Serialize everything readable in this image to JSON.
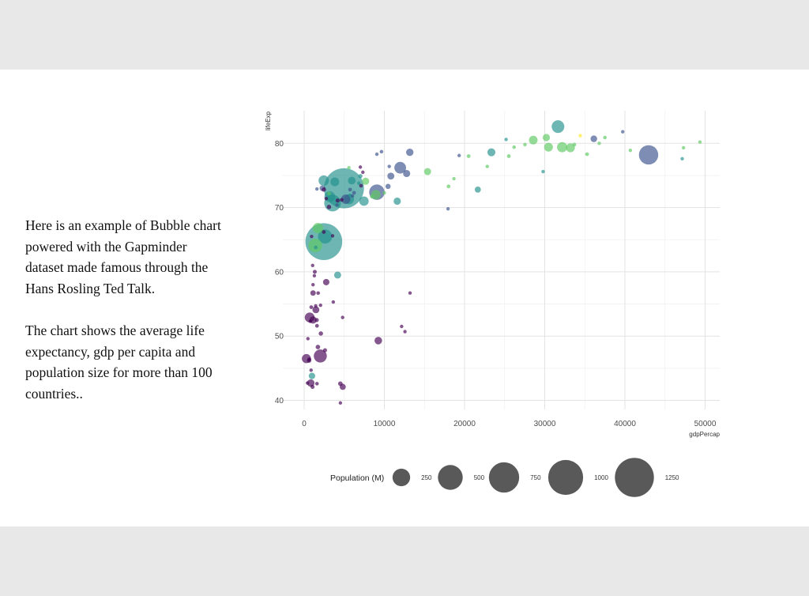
{
  "description": {
    "paragraph1": "Here is an example of Bubble chart powered with the Gapminder dataset made famous through the Hans Rosling Ted Talk.",
    "paragraph2": "The chart shows the average life expectancy, gdp per capita and population size for more than 100 countries.."
  },
  "chart_data": {
    "type": "scatter",
    "xlabel": "gdpPercap",
    "ylabel": "lifeExp",
    "xlim": [
      0,
      50000
    ],
    "ylim": [
      40,
      80
    ],
    "x_ticks": [
      "0",
      "10000",
      "20000",
      "30000",
      "40000",
      "50000"
    ],
    "y_ticks": [
      "40",
      "50",
      "60",
      "70",
      "80"
    ],
    "grid": true,
    "size_legend": {
      "title": "Population (M)",
      "values": [
        250,
        500,
        750,
        1000,
        1250
      ],
      "labels": [
        "250",
        "500",
        "750",
        "1000",
        "1250"
      ],
      "placement": "bottom"
    },
    "color_scale": [
      "#440154",
      "#3b528b",
      "#21908c",
      "#5ec962",
      "#fde725"
    ],
    "points": [
      {
        "x": 4959,
        "y": 73.0,
        "pop": 1319,
        "c": 2
      },
      {
        "x": 2452,
        "y": 64.7,
        "pop": 1110,
        "c": 2
      },
      {
        "x": 42952,
        "y": 78.2,
        "pop": 301,
        "c": 1
      },
      {
        "x": 3541,
        "y": 70.7,
        "pop": 224,
        "c": 2
      },
      {
        "x": 9066,
        "y": 72.4,
        "pop": 190,
        "c": 1
      },
      {
        "x": 2606,
        "y": 65.5,
        "pop": 160,
        "c": 2
      },
      {
        "x": 1391,
        "y": 64.1,
        "pop": 150,
        "c": 3
      },
      {
        "x": 2014,
        "y": 46.9,
        "pop": 135,
        "c": 0
      },
      {
        "x": 31656,
        "y": 82.6,
        "pop": 127,
        "c": 2
      },
      {
        "x": 11977,
        "y": 76.2,
        "pop": 108,
        "c": 1
      },
      {
        "x": 3190,
        "y": 71.7,
        "pop": 91,
        "c": 2
      },
      {
        "x": 2442,
        "y": 74.2,
        "pop": 85,
        "c": 2
      },
      {
        "x": 32170,
        "y": 79.4,
        "pop": 82,
        "c": 3
      },
      {
        "x": 690,
        "y": 52.9,
        "pop": 76,
        "c": 0
      },
      {
        "x": 5581,
        "y": 71.3,
        "pop": 80,
        "c": 2
      },
      {
        "x": 7458,
        "y": 71.0,
        "pop": 69,
        "c": 2
      },
      {
        "x": 5186,
        "y": 71.3,
        "pop": 69,
        "c": 1
      },
      {
        "x": 1713,
        "y": 66.8,
        "pop": 85,
        "c": 3
      },
      {
        "x": 8948,
        "y": 72.0,
        "pop": 71,
        "c": 3
      },
      {
        "x": 9246,
        "y": 49.3,
        "pop": 44,
        "c": 0
      },
      {
        "x": 277,
        "y": 46.5,
        "pop": 64,
        "c": 0
      },
      {
        "x": 11606,
        "y": 71.0,
        "pop": 40,
        "c": 2
      },
      {
        "x": 30470,
        "y": 79.4,
        "pop": 60,
        "c": 3
      },
      {
        "x": 28570,
        "y": 80.5,
        "pop": 58,
        "c": 3
      },
      {
        "x": 33203,
        "y": 79.3,
        "pop": 61,
        "c": 3
      },
      {
        "x": 23348,
        "y": 78.6,
        "pop": 49,
        "c": 2
      },
      {
        "x": 30200,
        "y": 80.9,
        "pop": 40,
        "c": 3
      },
      {
        "x": 36126,
        "y": 80.7,
        "pop": 33,
        "c": 1
      },
      {
        "x": 12779,
        "y": 75.3,
        "pop": 39,
        "c": 1
      },
      {
        "x": 15390,
        "y": 75.6,
        "pop": 38,
        "c": 3
      },
      {
        "x": 2280,
        "y": 73.0,
        "pop": 24,
        "c": 1
      },
      {
        "x": 21655,
        "y": 72.8,
        "pop": 28,
        "c": 2
      },
      {
        "x": 10461,
        "y": 73.3,
        "pop": 20,
        "c": 1
      },
      {
        "x": 824,
        "y": 42.7,
        "pop": 42,
        "c": 0
      },
      {
        "x": 1463,
        "y": 54.1,
        "pop": 37,
        "c": 0
      },
      {
        "x": 1107,
        "y": 52.5,
        "pop": 40,
        "c": 0
      },
      {
        "x": 4173,
        "y": 59.5,
        "pop": 38,
        "c": 2
      },
      {
        "x": 4811,
        "y": 42.1,
        "pop": 28,
        "c": 0
      },
      {
        "x": 2749,
        "y": 58.4,
        "pop": 31,
        "c": 0
      },
      {
        "x": 1107,
        "y": 56.7,
        "pop": 22,
        "c": 0
      },
      {
        "x": 5937,
        "y": 74.2,
        "pop": 45,
        "c": 2
      },
      {
        "x": 7670,
        "y": 74.1,
        "pop": 39,
        "c": 3
      },
      {
        "x": 974,
        "y": 43.8,
        "pop": 32,
        "c": 2
      },
      {
        "x": 3820,
        "y": 74.0,
        "pop": 60,
        "c": 2
      },
      {
        "x": 13172,
        "y": 78.6,
        "pop": 42,
        "c": 1
      },
      {
        "x": 10808,
        "y": 74.9,
        "pop": 37,
        "c": 1
      },
      {
        "x": 34435,
        "y": 81.2,
        "pop": 7,
        "c": 4
      },
      {
        "x": 40676,
        "y": 78.9,
        "pop": 5,
        "c": 3
      },
      {
        "x": 47307,
        "y": 79.3,
        "pop": 6,
        "c": 3
      },
      {
        "x": 49357,
        "y": 80.2,
        "pop": 4,
        "c": 3
      },
      {
        "x": 36798,
        "y": 80.0,
        "pop": 8,
        "c": 3
      },
      {
        "x": 35278,
        "y": 78.3,
        "pop": 10,
        "c": 3
      },
      {
        "x": 33692,
        "y": 79.8,
        "pop": 10,
        "c": 3
      },
      {
        "x": 37506,
        "y": 80.9,
        "pop": 9,
        "c": 3
      },
      {
        "x": 39725,
        "y": 81.8,
        "pop": 7,
        "c": 1
      },
      {
        "x": 25185,
        "y": 80.6,
        "pop": 7,
        "c": 2
      },
      {
        "x": 47143,
        "y": 77.6,
        "pop": 5,
        "c": 2
      },
      {
        "x": 19328,
        "y": 78.1,
        "pop": 5,
        "c": 1
      },
      {
        "x": 20510,
        "y": 78.0,
        "pop": 10,
        "c": 3
      },
      {
        "x": 22833,
        "y": 76.4,
        "pop": 7,
        "c": 3
      },
      {
        "x": 18008,
        "y": 73.3,
        "pop": 10,
        "c": 3
      },
      {
        "x": 18678,
        "y": 74.5,
        "pop": 7,
        "c": 3
      },
      {
        "x": 26180,
        "y": 79.4,
        "pop": 9,
        "c": 3
      },
      {
        "x": 27538,
        "y": 79.8,
        "pop": 9,
        "c": 3
      },
      {
        "x": 25523,
        "y": 78.0,
        "pop": 10,
        "c": 3
      },
      {
        "x": 29796,
        "y": 75.6,
        "pop": 2,
        "c": 2
      },
      {
        "x": 17942,
        "y": 69.8,
        "pop": 4,
        "c": 1
      },
      {
        "x": 12570,
        "y": 50.7,
        "pop": 5,
        "c": 0
      },
      {
        "x": 12154,
        "y": 51.5,
        "pop": 3,
        "c": 0
      },
      {
        "x": 13206,
        "y": 56.7,
        "pop": 4,
        "c": 0
      },
      {
        "x": 9645,
        "y": 78.7,
        "pop": 9,
        "c": 1
      },
      {
        "x": 9065,
        "y": 78.3,
        "pop": 8,
        "c": 1
      },
      {
        "x": 10611,
        "y": 76.4,
        "pop": 6,
        "c": 1
      },
      {
        "x": 4797,
        "y": 52.9,
        "pop": 3,
        "c": 0
      },
      {
        "x": 4513,
        "y": 42.6,
        "pop": 15,
        "c": 0
      },
      {
        "x": 4519,
        "y": 39.6,
        "pop": 2,
        "c": 0
      },
      {
        "x": 3632,
        "y": 55.3,
        "pop": 8,
        "c": 0
      },
      {
        "x": 1598,
        "y": 42.6,
        "pop": 9,
        "c": 0
      },
      {
        "x": 1044,
        "y": 42.1,
        "pop": 12,
        "c": 0
      },
      {
        "x": 415,
        "y": 42.7,
        "pop": 8,
        "c": 0
      },
      {
        "x": 641,
        "y": 46.4,
        "pop": 10,
        "c": 0
      },
      {
        "x": 1712,
        "y": 48.3,
        "pop": 15,
        "c": 0
      },
      {
        "x": 863,
        "y": 44.7,
        "pop": 5,
        "c": 0
      },
      {
        "x": 619,
        "y": 46.2,
        "pop": 14,
        "c": 0
      },
      {
        "x": 1569,
        "y": 52.5,
        "pop": 12,
        "c": 0
      },
      {
        "x": 1598,
        "y": 51.6,
        "pop": 10,
        "c": 0
      },
      {
        "x": 2042,
        "y": 54.8,
        "pop": 4,
        "c": 0
      },
      {
        "x": 1327,
        "y": 60.0,
        "pop": 11,
        "c": 0
      },
      {
        "x": 1746,
        "y": 56.7,
        "pop": 9,
        "c": 0
      },
      {
        "x": 883,
        "y": 54.5,
        "pop": 10,
        "c": 0
      },
      {
        "x": 1107,
        "y": 58.0,
        "pop": 8,
        "c": 0
      },
      {
        "x": 2082,
        "y": 50.4,
        "pop": 14,
        "c": 0
      },
      {
        "x": 470,
        "y": 49.6,
        "pop": 8,
        "c": 0
      },
      {
        "x": 1271,
        "y": 59.4,
        "pop": 7,
        "c": 0
      },
      {
        "x": 926,
        "y": 65.5,
        "pop": 5,
        "c": 0
      },
      {
        "x": 2602,
        "y": 47.8,
        "pop": 12,
        "c": 0
      },
      {
        "x": 759,
        "y": 52.3,
        "pop": 7,
        "c": 0
      },
      {
        "x": 1056,
        "y": 61.0,
        "pop": 5,
        "c": 0
      },
      {
        "x": 3548,
        "y": 65.6,
        "pop": 8,
        "c": 0
      },
      {
        "x": 1441,
        "y": 54.7,
        "pop": 6,
        "c": 0
      },
      {
        "x": 2749,
        "y": 71.4,
        "pop": 7,
        "c": 0
      },
      {
        "x": 4090,
        "y": 70.4,
        "pop": 8,
        "c": 1
      },
      {
        "x": 6223,
        "y": 72.3,
        "pop": 10,
        "c": 1
      },
      {
        "x": 7008,
        "y": 74.9,
        "pop": 13,
        "c": 2
      },
      {
        "x": 7092,
        "y": 73.4,
        "pop": 10,
        "c": 0
      },
      {
        "x": 5728,
        "y": 71.9,
        "pop": 9,
        "c": 2
      },
      {
        "x": 6025,
        "y": 71.8,
        "pop": 8,
        "c": 1
      },
      {
        "x": 8458,
        "y": 71.7,
        "pop": 11,
        "c": 3
      },
      {
        "x": 3095,
        "y": 72.2,
        "pop": 9,
        "c": 3
      },
      {
        "x": 4684,
        "y": 71.2,
        "pop": 10,
        "c": 0
      },
      {
        "x": 7320,
        "y": 75.5,
        "pop": 5,
        "c": 0
      },
      {
        "x": 6812,
        "y": 73.8,
        "pop": 6,
        "c": 2
      },
      {
        "x": 5580,
        "y": 76.2,
        "pop": 3,
        "c": 3
      },
      {
        "x": 2452,
        "y": 72.8,
        "pop": 14,
        "c": 0
      },
      {
        "x": 3095,
        "y": 70.1,
        "pop": 14,
        "c": 0
      },
      {
        "x": 4173,
        "y": 71.1,
        "pop": 12,
        "c": 0
      },
      {
        "x": 1592,
        "y": 72.9,
        "pop": 6,
        "c": 1
      },
      {
        "x": 5728,
        "y": 72.8,
        "pop": 10,
        "c": 1
      },
      {
        "x": 10000,
        "y": 72.3,
        "pop": 4,
        "c": 3
      },
      {
        "x": 7007,
        "y": 76.3,
        "pop": 3,
        "c": 0
      },
      {
        "x": 2452,
        "y": 66.2,
        "pop": 10,
        "c": 0
      },
      {
        "x": 1441,
        "y": 63.8,
        "pop": 9,
        "c": 2
      }
    ]
  }
}
